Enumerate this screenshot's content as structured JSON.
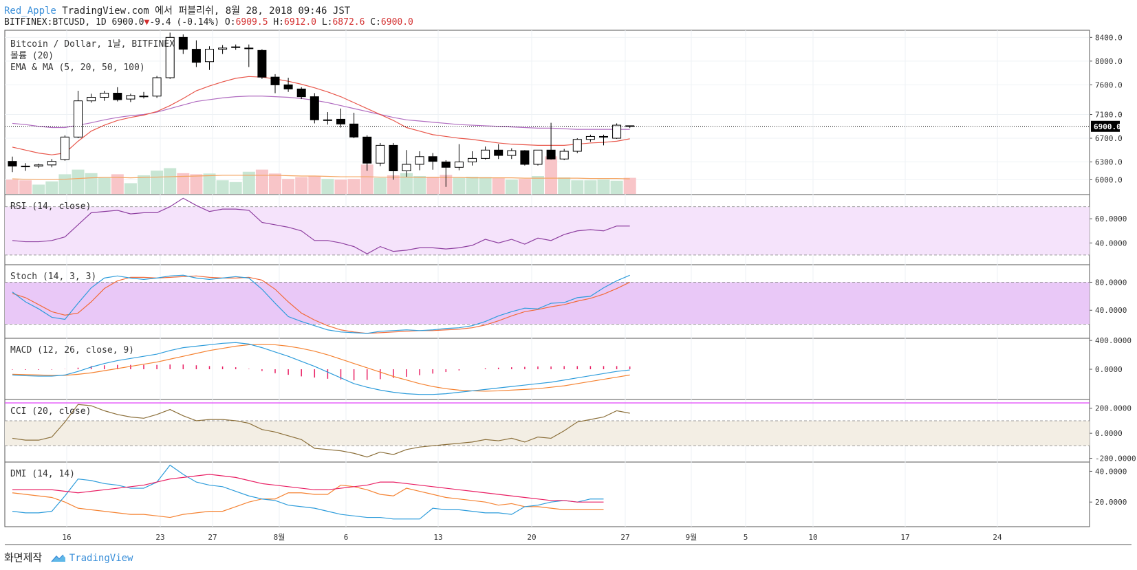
{
  "header": {
    "user": "Red_Apple",
    "site_text": "TradingView.com 에서 퍼블리쉬, 8월 28, 2018 09:46 JST",
    "symbol": "BITFINEX:BTCUSD, 1D 6900.0",
    "change_arrow": "▼",
    "change": "-9.4 (-0.14%)",
    "o_label": "O:",
    "o_value": "6909.5",
    "h_label": "H:",
    "h_value": "6912.0",
    "l_label": "L:",
    "l_value": "6872.6",
    "c_label": "C:",
    "c_value": "6900.0"
  },
  "footer": {
    "made_with": "화면제작",
    "brand": "TradingView"
  },
  "colors": {
    "up_body": "#ffffff",
    "down_body": "#000000",
    "vol_up": "#c8e6d4",
    "vol_down": "#f8c5c8",
    "ema5": "#e8564a",
    "ma": "#b06cc0",
    "vol_ma": "#f4a460",
    "rsi": "#8e3fa0",
    "rsi_band": "#f5e3fb",
    "stoch_k": "#2d9cdb",
    "stoch_d": "#f26b3a",
    "stoch_band": "#e9c8f7",
    "macd": "#2d9cdb",
    "signal": "#f58231",
    "hist": "#e91e63",
    "cci": "#8b6f3a",
    "cci_band": "#f3eee4",
    "dmi_plus": "#2d9cdb",
    "dmi_minus": "#f58231",
    "adx": "#e91e63"
  },
  "chart_data": {
    "type": "candlestick",
    "x_labels": [
      "16",
      "23",
      "27",
      "8월",
      "6",
      "13",
      "20",
      "27",
      "9월",
      "5",
      "10",
      "17",
      "24"
    ],
    "last_price": "6900.0",
    "price_ticks": [
      "8400.0",
      "8000.0",
      "7600.0",
      "7100.0",
      "6700.0",
      "6300.0",
      "6000.0"
    ],
    "candles": [
      {
        "o": 6310,
        "h": 6390,
        "l": 6130,
        "c": 6230
      },
      {
        "o": 6230,
        "h": 6280,
        "l": 6150,
        "c": 6220
      },
      {
        "o": 6230,
        "h": 6270,
        "l": 6200,
        "c": 6250
      },
      {
        "o": 6250,
        "h": 6350,
        "l": 6210,
        "c": 6310
      },
      {
        "o": 6340,
        "h": 6750,
        "l": 6320,
        "c": 6720
      },
      {
        "o": 6720,
        "h": 7500,
        "l": 6700,
        "c": 7330
      },
      {
        "o": 7330,
        "h": 7450,
        "l": 7300,
        "c": 7390
      },
      {
        "o": 7390,
        "h": 7500,
        "l": 7330,
        "c": 7460
      },
      {
        "o": 7460,
        "h": 7560,
        "l": 7320,
        "c": 7350
      },
      {
        "o": 7360,
        "h": 7450,
        "l": 7310,
        "c": 7420
      },
      {
        "o": 7400,
        "h": 7480,
        "l": 7370,
        "c": 7410
      },
      {
        "o": 7410,
        "h": 7750,
        "l": 7380,
        "c": 7720
      },
      {
        "o": 7720,
        "h": 8480,
        "l": 7700,
        "c": 8400
      },
      {
        "o": 8400,
        "h": 8450,
        "l": 8120,
        "c": 8200
      },
      {
        "o": 8200,
        "h": 8350,
        "l": 7900,
        "c": 7980
      },
      {
        "o": 7990,
        "h": 8250,
        "l": 7850,
        "c": 8200
      },
      {
        "o": 8200,
        "h": 8270,
        "l": 8120,
        "c": 8220
      },
      {
        "o": 8230,
        "h": 8280,
        "l": 8190,
        "c": 8240
      },
      {
        "o": 8220,
        "h": 8280,
        "l": 7900,
        "c": 8220
      },
      {
        "o": 8180,
        "h": 8200,
        "l": 7700,
        "c": 7730
      },
      {
        "o": 7730,
        "h": 7780,
        "l": 7460,
        "c": 7600
      },
      {
        "o": 7600,
        "h": 7720,
        "l": 7480,
        "c": 7530
      },
      {
        "o": 7530,
        "h": 7560,
        "l": 7360,
        "c": 7400
      },
      {
        "o": 7400,
        "h": 7460,
        "l": 6950,
        "c": 7010
      },
      {
        "o": 7010,
        "h": 7140,
        "l": 6930,
        "c": 7010
      },
      {
        "o": 7020,
        "h": 7200,
        "l": 6880,
        "c": 6940
      },
      {
        "o": 6940,
        "h": 7130,
        "l": 6700,
        "c": 6720
      },
      {
        "o": 6720,
        "h": 6750,
        "l": 6150,
        "c": 6280
      },
      {
        "o": 6280,
        "h": 6620,
        "l": 6230,
        "c": 6580
      },
      {
        "o": 6580,
        "h": 6620,
        "l": 6000,
        "c": 6150
      },
      {
        "o": 6150,
        "h": 6500,
        "l": 6050,
        "c": 6260
      },
      {
        "o": 6260,
        "h": 6480,
        "l": 6160,
        "c": 6390
      },
      {
        "o": 6390,
        "h": 6450,
        "l": 6170,
        "c": 6310
      },
      {
        "o": 6300,
        "h": 6330,
        "l": 5880,
        "c": 6210
      },
      {
        "o": 6210,
        "h": 6600,
        "l": 6160,
        "c": 6300
      },
      {
        "o": 6300,
        "h": 6480,
        "l": 6240,
        "c": 6360
      },
      {
        "o": 6360,
        "h": 6560,
        "l": 6340,
        "c": 6500
      },
      {
        "o": 6500,
        "h": 6600,
        "l": 6350,
        "c": 6410
      },
      {
        "o": 6410,
        "h": 6530,
        "l": 6350,
        "c": 6490
      },
      {
        "o": 6490,
        "h": 6500,
        "l": 6240,
        "c": 6260
      },
      {
        "o": 6260,
        "h": 6500,
        "l": 6240,
        "c": 6500
      },
      {
        "o": 6500,
        "h": 6960,
        "l": 6340,
        "c": 6350
      },
      {
        "o": 6350,
        "h": 6520,
        "l": 6330,
        "c": 6480
      },
      {
        "o": 6480,
        "h": 6700,
        "l": 6450,
        "c": 6680
      },
      {
        "o": 6680,
        "h": 6760,
        "l": 6640,
        "c": 6730
      },
      {
        "o": 6720,
        "h": 6760,
        "l": 6580,
        "c": 6730
      },
      {
        "o": 6700,
        "h": 6950,
        "l": 6690,
        "c": 6920
      },
      {
        "o": 6910,
        "h": 6912,
        "l": 6872,
        "c": 6900
      }
    ],
    "volume": [
      40,
      38,
      26,
      35,
      55,
      68,
      58,
      47,
      55,
      30,
      52,
      65,
      72,
      58,
      55,
      57,
      38,
      33,
      62,
      68,
      57,
      42,
      47,
      49,
      42,
      40,
      42,
      82,
      45,
      52,
      58,
      50,
      48,
      53,
      46,
      48,
      47,
      44,
      40,
      42,
      50,
      105,
      46,
      38,
      38,
      40,
      37,
      45
    ],
    "ema5": [
      6550,
      6500,
      6450,
      6420,
      6450,
      6650,
      6820,
      6920,
      7000,
      7050,
      7090,
      7150,
      7250,
      7370,
      7500,
      7580,
      7650,
      7710,
      7740,
      7730,
      7700,
      7660,
      7610,
      7550,
      7480,
      7400,
      7300,
      7200,
      7100,
      7000,
      6880,
      6820,
      6760,
      6730,
      6700,
      6680,
      6650,
      6620,
      6600,
      6590,
      6580,
      6580,
      6580,
      6600,
      6620,
      6630,
      6650,
      6690
    ],
    "ma_slow": [
      6950,
      6930,
      6900,
      6880,
      6880,
      6920,
      6960,
      7010,
      7050,
      7080,
      7100,
      7140,
      7200,
      7260,
      7320,
      7350,
      7380,
      7400,
      7410,
      7410,
      7400,
      7390,
      7370,
      7340,
      7300,
      7250,
      7200,
      7150,
      7100,
      7050,
      7010,
      6990,
      6970,
      6950,
      6930,
      6920,
      6910,
      6900,
      6890,
      6880,
      6870,
      6870,
      6860,
      6850,
      6850,
      6850,
      6850,
      6850
    ],
    "vol_ma": [
      42,
      41,
      40,
      40,
      41,
      43,
      45,
      46,
      46,
      45,
      46,
      47,
      48,
      49,
      50,
      51,
      52,
      52,
      52,
      52,
      52,
      51,
      50,
      50,
      49,
      48,
      48,
      48,
      47,
      47,
      47,
      46,
      46,
      46,
      46,
      45,
      45,
      45,
      45,
      44,
      44,
      44,
      44,
      44,
      43,
      43,
      43,
      42
    ],
    "rsi": {
      "label": "RSI (14, close)",
      "ticks": [
        "60.0000",
        "40.0000"
      ],
      "values": [
        42,
        41,
        41,
        42,
        45,
        55,
        65,
        66,
        67,
        64,
        65,
        65,
        70,
        77,
        71,
        66,
        68,
        68,
        67,
        57,
        55,
        53,
        50,
        42,
        42,
        40,
        37,
        31,
        37,
        33,
        34,
        36,
        36,
        35,
        36,
        38,
        43,
        40,
        43,
        39,
        44,
        42,
        47,
        50,
        51,
        50,
        54,
        54
      ]
    },
    "stoch": {
      "label": "Stoch (14, 3, 3)",
      "ticks": [
        "80.0000",
        "40.0000"
      ],
      "k": [
        66,
        52,
        42,
        30,
        27,
        50,
        72,
        86,
        89,
        86,
        84,
        86,
        89,
        90,
        86,
        84,
        86,
        88,
        86,
        70,
        50,
        31,
        24,
        18,
        12,
        9,
        8,
        7,
        10,
        11,
        12,
        11,
        12,
        14,
        15,
        18,
        24,
        32,
        38,
        43,
        42,
        50,
        51,
        58,
        60,
        72,
        82,
        90
      ],
      "d": [
        64,
        58,
        48,
        38,
        33,
        36,
        52,
        71,
        82,
        87,
        87,
        86,
        87,
        88,
        89,
        87,
        86,
        86,
        87,
        83,
        70,
        52,
        36,
        26,
        18,
        12,
        9,
        7,
        8,
        9,
        10,
        11,
        11,
        12,
        13,
        15,
        19,
        25,
        32,
        38,
        41,
        45,
        48,
        53,
        57,
        63,
        71,
        80
      ]
    },
    "macd": {
      "label": "MACD (12, 26, close, 9)",
      "ticks": [
        "400.0000",
        "0.0000"
      ],
      "macd": [
        -80,
        -90,
        -95,
        -95,
        -80,
        -30,
        30,
        80,
        120,
        150,
        180,
        210,
        260,
        300,
        320,
        340,
        360,
        370,
        350,
        300,
        240,
        180,
        110,
        40,
        -40,
        -120,
        -200,
        -250,
        -290,
        -320,
        -340,
        -350,
        -350,
        -340,
        -320,
        -300,
        -280,
        -260,
        -240,
        -220,
        -200,
        -180,
        -150,
        -120,
        -90,
        -60,
        -30,
        -10
      ],
      "signal": [
        -70,
        -75,
        -80,
        -85,
        -85,
        -70,
        -50,
        -20,
        10,
        40,
        70,
        100,
        140,
        180,
        220,
        260,
        290,
        320,
        340,
        345,
        340,
        320,
        290,
        250,
        200,
        140,
        80,
        20,
        -40,
        -100,
        -150,
        -200,
        -240,
        -270,
        -290,
        -300,
        -305,
        -300,
        -290,
        -280,
        -270,
        -250,
        -230,
        -200,
        -170,
        -140,
        -110,
        -80
      ],
      "hist": [
        -10,
        -15,
        -15,
        -10,
        5,
        40,
        80,
        100,
        110,
        110,
        110,
        110,
        120,
        120,
        100,
        80,
        70,
        50,
        10,
        -45,
        -100,
        -140,
        -180,
        -210,
        -240,
        -260,
        -280,
        -270,
        -250,
        -220,
        -190,
        -150,
        -110,
        -70,
        -30,
        0,
        25,
        40,
        50,
        60,
        70,
        70,
        80,
        80,
        80,
        80,
        80,
        70
      ]
    },
    "cci": {
      "label": "CCI (20, close)",
      "ticks": [
        "200.0000",
        "0.0000",
        "-200.0000"
      ],
      "values": [
        -40,
        -55,
        -55,
        -30,
        90,
        230,
        220,
        180,
        150,
        130,
        120,
        150,
        190,
        140,
        100,
        110,
        110,
        100,
        80,
        30,
        10,
        -20,
        -50,
        -120,
        -130,
        -140,
        -160,
        -190,
        -150,
        -170,
        -130,
        -110,
        -100,
        -90,
        -80,
        -70,
        -50,
        -60,
        -40,
        -70,
        -30,
        -40,
        20,
        90,
        110,
        130,
        180,
        160
      ]
    },
    "dmi": {
      "label": "DMI (14, 14)",
      "ticks": [
        "40.0000",
        "20.0000"
      ],
      "plus": [
        14,
        13,
        13,
        14,
        24,
        35,
        34,
        32,
        31,
        29,
        29,
        33,
        44,
        38,
        33,
        31,
        30,
        27,
        24,
        22,
        21,
        18,
        17,
        16,
        14,
        12,
        11,
        10,
        10,
        9,
        9,
        9,
        16,
        15,
        15,
        14,
        13,
        13,
        12,
        17,
        18,
        20,
        21,
        20,
        22,
        22
      ],
      "minus": [
        26,
        25,
        24,
        23,
        20,
        16,
        15,
        14,
        13,
        12,
        12,
        11,
        10,
        12,
        13,
        14,
        14,
        17,
        20,
        22,
        22,
        26,
        26,
        25,
        25,
        31,
        30,
        28,
        25,
        24,
        29,
        27,
        25,
        23,
        22,
        21,
        20,
        18,
        19,
        17,
        17,
        16,
        15,
        15,
        15,
        15
      ],
      "adx": [
        28,
        28,
        28,
        28,
        27,
        26,
        27,
        28,
        29,
        30,
        31,
        33,
        35,
        36,
        37,
        38,
        37,
        36,
        34,
        32,
        31,
        30,
        29,
        28,
        28,
        29,
        30,
        31,
        33,
        33,
        32,
        31,
        30,
        29,
        28,
        27,
        26,
        25,
        24,
        23,
        22,
        21,
        21,
        20,
        20,
        20
      ]
    }
  }
}
